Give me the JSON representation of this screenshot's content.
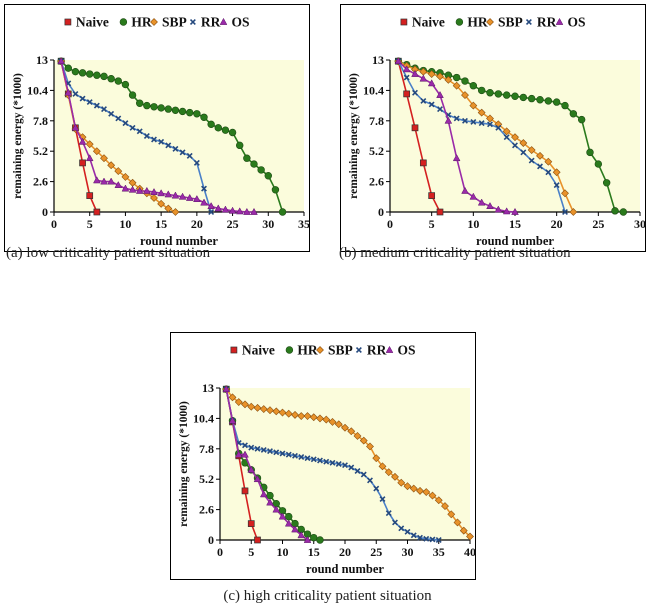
{
  "colors": {
    "Naive": "#d42020",
    "HR": "#2a7a1c",
    "SBP": "#e8922a",
    "RR": "#4a80c8",
    "OS": "#9a2aa8"
  },
  "chart_data": [
    {
      "type": "line",
      "caption": "(a) low criticality patient situation",
      "xlabel": "round number",
      "ylabel": "remaining energy (*1000)",
      "xlim": [
        0,
        35
      ],
      "ylim": [
        0,
        13
      ],
      "xticks": [
        "0",
        "5",
        "10",
        "15",
        "20",
        "25",
        "30",
        "35"
      ],
      "yticks": [
        "0",
        "2.6",
        "5.2",
        "7.8",
        "10.4",
        "13"
      ],
      "legend": [
        "Naive",
        "HR",
        "SBP",
        "RR",
        "OS"
      ],
      "legend_position": "top",
      "series": [
        {
          "name": "Naive",
          "x": [
            1,
            2,
            3,
            4,
            5,
            6
          ],
          "y": [
            12.9,
            10.1,
            7.2,
            4.2,
            1.4,
            0
          ]
        },
        {
          "name": "HR",
          "x": [
            1,
            2,
            3,
            4,
            5,
            6,
            7,
            8,
            9,
            10,
            11,
            12,
            13,
            14,
            15,
            16,
            17,
            18,
            19,
            20,
            21,
            22,
            23,
            24,
            25,
            26,
            27,
            28,
            29,
            30,
            31,
            32
          ],
          "y": [
            12.9,
            12.3,
            12.0,
            11.9,
            11.8,
            11.7,
            11.6,
            11.4,
            11.2,
            10.9,
            10.0,
            9.3,
            9.1,
            9.0,
            8.9,
            8.8,
            8.7,
            8.6,
            8.5,
            8.4,
            8.1,
            7.5,
            7.2,
            7.0,
            6.8,
            5.7,
            4.6,
            4.1,
            3.6,
            3.1,
            1.9,
            0
          ]
        },
        {
          "name": "SBP",
          "x": [
            1,
            2,
            3,
            4,
            5,
            6,
            7,
            8,
            9,
            10,
            11,
            12,
            13,
            14,
            15,
            16,
            17
          ],
          "y": [
            12.9,
            10.0,
            7.1,
            6.4,
            5.8,
            5.2,
            4.6,
            4.0,
            3.5,
            3.0,
            2.5,
            2.0,
            1.6,
            1.2,
            0.7,
            0.3,
            0
          ]
        },
        {
          "name": "RR",
          "x": [
            1,
            2,
            3,
            4,
            5,
            6,
            7,
            8,
            9,
            10,
            11,
            12,
            13,
            14,
            15,
            16,
            17,
            18,
            19,
            20,
            21,
            22
          ],
          "y": [
            12.9,
            11.0,
            10.1,
            9.7,
            9.4,
            9.1,
            8.8,
            8.4,
            8.0,
            7.6,
            7.2,
            6.9,
            6.5,
            6.2,
            6.0,
            5.7,
            5.4,
            5.1,
            4.8,
            4.2,
            2.0,
            0
          ]
        },
        {
          "name": "OS",
          "x": [
            1,
            2,
            3,
            4,
            5,
            6,
            7,
            8,
            9,
            10,
            11,
            12,
            13,
            14,
            15,
            16,
            17,
            18,
            19,
            20,
            21,
            22,
            23,
            24,
            25,
            26,
            27,
            28
          ],
          "y": [
            12.9,
            10.2,
            7.2,
            6.0,
            4.6,
            2.7,
            2.6,
            2.6,
            2.3,
            2.0,
            1.9,
            1.8,
            1.8,
            1.7,
            1.6,
            1.5,
            1.4,
            1.3,
            1.2,
            1.1,
            0.8,
            0.5,
            0.3,
            0.2,
            0.1,
            0.05,
            0,
            0
          ]
        }
      ]
    },
    {
      "type": "line",
      "caption": "(b) medium criticality patient situation",
      "xlabel": "round number",
      "ylabel": "remaining energy (*1000)",
      "xlim": [
        0,
        30
      ],
      "ylim": [
        0,
        13
      ],
      "xticks": [
        "0",
        "5",
        "10",
        "15",
        "20",
        "25",
        "30"
      ],
      "yticks": [
        "0",
        "2.6",
        "5.2",
        "7.8",
        "10.4",
        "13"
      ],
      "legend": [
        "Naive",
        "HR",
        "SBP",
        "RR",
        "OS"
      ],
      "legend_position": "top",
      "series": [
        {
          "name": "Naive",
          "x": [
            1,
            2,
            3,
            4,
            5,
            6
          ],
          "y": [
            12.9,
            10.1,
            7.2,
            4.2,
            1.4,
            0
          ]
        },
        {
          "name": "HR",
          "x": [
            1,
            2,
            3,
            4,
            5,
            6,
            7,
            8,
            9,
            10,
            11,
            12,
            13,
            14,
            15,
            16,
            17,
            18,
            19,
            20,
            21,
            22,
            23,
            24,
            25,
            26,
            27,
            28
          ],
          "y": [
            12.9,
            12.6,
            12.3,
            12.1,
            12.0,
            11.9,
            11.7,
            11.5,
            11.2,
            10.8,
            10.4,
            10.2,
            10.1,
            10.0,
            9.9,
            9.8,
            9.7,
            9.6,
            9.5,
            9.4,
            9.1,
            8.4,
            7.9,
            5.1,
            4.1,
            2.5,
            0.1,
            0
          ]
        },
        {
          "name": "SBP",
          "x": [
            1,
            2,
            3,
            4,
            5,
            6,
            7,
            8,
            9,
            10,
            11,
            12,
            13,
            14,
            15,
            16,
            17,
            18,
            19,
            20,
            21,
            22
          ],
          "y": [
            12.9,
            12.5,
            12.2,
            12.0,
            11.8,
            11.6,
            11.3,
            10.8,
            10.0,
            9.1,
            8.5,
            8.0,
            7.5,
            6.9,
            6.4,
            5.9,
            5.3,
            4.8,
            4.3,
            3.4,
            1.6,
            0
          ]
        },
        {
          "name": "RR",
          "x": [
            1,
            2,
            3,
            4,
            5,
            6,
            7,
            8,
            9,
            10,
            11,
            12,
            13,
            14,
            15,
            16,
            17,
            18,
            19,
            20,
            21
          ],
          "y": [
            12.9,
            11.5,
            10.2,
            9.5,
            9.2,
            8.8,
            8.3,
            8.0,
            7.8,
            7.7,
            7.6,
            7.5,
            7.2,
            6.4,
            5.7,
            5.1,
            4.4,
            3.9,
            3.4,
            2.3,
            0
          ]
        },
        {
          "name": "OS",
          "x": [
            1,
            2,
            3,
            4,
            5,
            6,
            7,
            8,
            9,
            10,
            11,
            12,
            13,
            14,
            15
          ],
          "y": [
            12.9,
            12.2,
            11.8,
            11.4,
            11.0,
            10.0,
            7.8,
            4.6,
            1.8,
            1.3,
            0.8,
            0.5,
            0.2,
            0.05,
            0
          ]
        }
      ]
    },
    {
      "type": "line",
      "caption": "(c) high criticality patient situation",
      "xlabel": "round number",
      "ylabel": "remaining energy (*1000)",
      "xlim": [
        0,
        40
      ],
      "ylim": [
        0,
        13
      ],
      "xticks": [
        "0",
        "5",
        "10",
        "15",
        "20",
        "25",
        "30",
        "35",
        "40"
      ],
      "yticks": [
        "0",
        "2.6",
        "5.2",
        "7.8",
        "10.4",
        "13"
      ],
      "legend": [
        "Naive",
        "HR",
        "SBP",
        "RR",
        "OS"
      ],
      "legend_position": "top",
      "series": [
        {
          "name": "Naive",
          "x": [
            1,
            2,
            3,
            4,
            5,
            6
          ],
          "y": [
            12.9,
            10.1,
            7.2,
            4.2,
            1.4,
            0
          ]
        },
        {
          "name": "HR",
          "x": [
            1,
            2,
            3,
            4,
            5,
            6,
            7,
            8,
            9,
            10,
            11,
            12,
            13,
            14,
            15,
            16
          ],
          "y": [
            12.9,
            10.2,
            7.4,
            6.6,
            6.0,
            5.3,
            4.5,
            3.8,
            3.1,
            2.5,
            2.0,
            1.4,
            0.9,
            0.5,
            0.2,
            0
          ]
        },
        {
          "name": "SBP",
          "x": [
            1,
            2,
            3,
            4,
            5,
            6,
            7,
            8,
            9,
            10,
            11,
            12,
            13,
            14,
            15,
            16,
            17,
            18,
            19,
            20,
            21,
            22,
            23,
            24,
            25,
            26,
            27,
            28,
            29,
            30,
            31,
            32,
            33,
            34,
            35,
            36,
            37,
            38,
            39,
            40
          ],
          "y": [
            12.9,
            12.2,
            11.8,
            11.6,
            11.4,
            11.3,
            11.2,
            11.1,
            11.0,
            10.9,
            10.8,
            10.7,
            10.6,
            10.6,
            10.5,
            10.4,
            10.3,
            10.1,
            9.9,
            9.6,
            9.3,
            8.9,
            8.5,
            8.0,
            7.0,
            6.3,
            5.8,
            5.4,
            4.9,
            4.6,
            4.4,
            4.2,
            4.1,
            3.8,
            3.4,
            2.9,
            2.2,
            1.5,
            0.8,
            0.3
          ]
        },
        {
          "name": "RR",
          "x": [
            1,
            2,
            3,
            4,
            5,
            6,
            7,
            8,
            9,
            10,
            11,
            12,
            13,
            14,
            15,
            16,
            17,
            18,
            19,
            20,
            21,
            22,
            23,
            24,
            25,
            26,
            27,
            28,
            29,
            30,
            31,
            32,
            33,
            34,
            35
          ],
          "y": [
            12.9,
            10.2,
            8.3,
            8.1,
            7.9,
            7.8,
            7.7,
            7.6,
            7.5,
            7.4,
            7.3,
            7.2,
            7.1,
            7.0,
            6.9,
            6.8,
            6.7,
            6.6,
            6.5,
            6.4,
            6.2,
            5.9,
            5.6,
            5.1,
            4.4,
            3.5,
            2.3,
            1.5,
            1.0,
            0.7,
            0.4,
            0.2,
            0.1,
            0.05,
            0
          ]
        },
        {
          "name": "OS",
          "x": [
            1,
            2,
            3,
            4,
            5,
            6,
            7,
            8,
            9,
            10,
            11,
            12,
            13,
            14
          ],
          "y": [
            12.9,
            10.2,
            7.3,
            7.3,
            6.0,
            5.2,
            3.9,
            3.2,
            2.6,
            2.0,
            1.4,
            0.9,
            0.4,
            0
          ]
        }
      ]
    }
  ]
}
